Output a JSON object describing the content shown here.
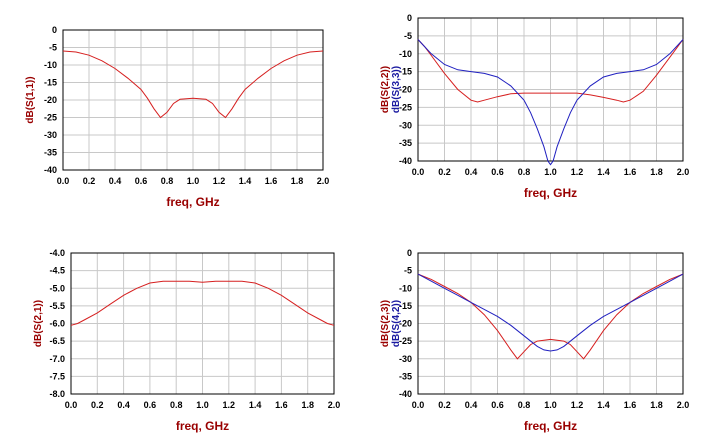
{
  "charts": [
    {
      "type": "line",
      "xlabel": "freq, GHz",
      "ylabel_parts": [
        {
          "text": "dB(S(1,1))",
          "color": "#990000"
        }
      ],
      "xlim": [
        0.0,
        2.0
      ],
      "ylim": [
        -40,
        0
      ],
      "xticks": [
        "0.0",
        "0.2",
        "0.4",
        "0.6",
        "0.8",
        "1.0",
        "1.2",
        "1.4",
        "1.6",
        "1.8",
        "2.0"
      ],
      "yticks": [
        "0",
        "-5",
        "-10",
        "-15",
        "-20",
        "-25",
        "-30",
        "-35",
        "-40"
      ],
      "grid": true,
      "series": [
        {
          "color": "#d62020",
          "x": [
            0.0,
            0.1,
            0.2,
            0.3,
            0.4,
            0.5,
            0.6,
            0.65,
            0.7,
            0.75,
            0.8,
            0.85,
            0.9,
            1.0,
            1.1,
            1.15,
            1.2,
            1.25,
            1.3,
            1.35,
            1.4,
            1.5,
            1.6,
            1.7,
            1.8,
            1.9,
            2.0
          ],
          "y": [
            -6.0,
            -6.3,
            -7.2,
            -8.8,
            -11.0,
            -13.8,
            -17.0,
            -19.5,
            -22.5,
            -25.0,
            -23.5,
            -21.0,
            -19.8,
            -19.5,
            -19.8,
            -21.0,
            -23.5,
            -25.0,
            -22.5,
            -19.5,
            -17.0,
            -13.8,
            -11.0,
            -8.8,
            -7.2,
            -6.3,
            -6.0
          ]
        }
      ]
    },
    {
      "type": "line",
      "xlabel": "freq, GHz",
      "ylabel_parts": [
        {
          "text": "dB(S(2,2))",
          "color": "#990000"
        },
        {
          "text": "dB(S(3,3))",
          "color": "#1a1aa0"
        }
      ],
      "xlim": [
        0.0,
        2.0
      ],
      "ylim": [
        -40,
        0
      ],
      "xticks": [
        "0.0",
        "0.2",
        "0.4",
        "0.6",
        "0.8",
        "1.0",
        "1.2",
        "1.4",
        "1.6",
        "1.8",
        "2.0"
      ],
      "yticks": [
        "0",
        "-5",
        "-10",
        "-15",
        "-20",
        "-25",
        "-30",
        "-35",
        "-40"
      ],
      "grid": true,
      "series": [
        {
          "color": "#d62020",
          "x": [
            0.0,
            0.05,
            0.1,
            0.2,
            0.3,
            0.4,
            0.45,
            0.5,
            0.6,
            0.7,
            0.8,
            0.9,
            1.0,
            1.1,
            1.2,
            1.3,
            1.4,
            1.5,
            1.55,
            1.6,
            1.7,
            1.8,
            1.9,
            1.95,
            2.0
          ],
          "y": [
            -6.0,
            -8.0,
            -10.5,
            -15.5,
            -20.0,
            -23.0,
            -23.5,
            -23.0,
            -22.0,
            -21.2,
            -21.0,
            -21.0,
            -21.0,
            -21.0,
            -21.0,
            -21.5,
            -22.2,
            -23.0,
            -23.5,
            -23.0,
            -20.5,
            -16.0,
            -11.0,
            -8.5,
            -6.0
          ]
        },
        {
          "color": "#2020c0",
          "x": [
            0.0,
            0.05,
            0.1,
            0.2,
            0.3,
            0.4,
            0.5,
            0.6,
            0.7,
            0.8,
            0.85,
            0.9,
            0.95,
            0.98,
            1.0,
            1.02,
            1.05,
            1.1,
            1.15,
            1.2,
            1.3,
            1.4,
            1.5,
            1.6,
            1.7,
            1.8,
            1.9,
            2.0
          ],
          "y": [
            -6.0,
            -8.0,
            -10.0,
            -13.0,
            -14.5,
            -15.0,
            -15.5,
            -16.5,
            -19.0,
            -23.0,
            -26.5,
            -31.0,
            -36.0,
            -40.0,
            -41.0,
            -40.0,
            -36.0,
            -31.0,
            -26.5,
            -23.0,
            -19.0,
            -16.5,
            -15.5,
            -15.0,
            -14.5,
            -13.0,
            -10.0,
            -6.0
          ]
        }
      ]
    },
    {
      "type": "line",
      "xlabel": "freq, GHz",
      "ylabel_parts": [
        {
          "text": "dB(S(2,1))",
          "color": "#990000"
        }
      ],
      "xlim": [
        0.0,
        2.0
      ],
      "ylim": [
        -8.0,
        -4.0
      ],
      "xticks": [
        "0.0",
        "0.2",
        "0.4",
        "0.6",
        "0.8",
        "1.0",
        "1.2",
        "1.4",
        "1.6",
        "1.8",
        "2.0"
      ],
      "yticks": [
        "-4.0",
        "-4.5",
        "-5.0",
        "-5.5",
        "-6.0",
        "-6.5",
        "-7.0",
        "-7.5",
        "-8.0"
      ],
      "grid": true,
      "series": [
        {
          "color": "#d62020",
          "x": [
            0.0,
            0.05,
            0.1,
            0.2,
            0.3,
            0.4,
            0.5,
            0.6,
            0.7,
            0.8,
            0.9,
            1.0,
            1.1,
            1.2,
            1.3,
            1.4,
            1.5,
            1.6,
            1.7,
            1.8,
            1.9,
            1.95,
            2.0
          ],
          "y": [
            -6.05,
            -6.0,
            -5.9,
            -5.7,
            -5.45,
            -5.2,
            -5.0,
            -4.85,
            -4.8,
            -4.8,
            -4.8,
            -4.83,
            -4.8,
            -4.8,
            -4.8,
            -4.85,
            -5.0,
            -5.2,
            -5.45,
            -5.7,
            -5.9,
            -6.0,
            -6.05
          ]
        }
      ]
    },
    {
      "type": "line",
      "xlabel": "freq, GHz",
      "ylabel_parts": [
        {
          "text": "dB(S(2,3))",
          "color": "#990000"
        },
        {
          "text": "dB(S(4,2))",
          "color": "#1a1aa0"
        }
      ],
      "xlim": [
        0.0,
        2.0
      ],
      "ylim": [
        -40,
        0
      ],
      "xticks": [
        "0.0",
        "0.2",
        "0.4",
        "0.6",
        "0.8",
        "1.0",
        "1.2",
        "1.4",
        "1.6",
        "1.8",
        "2.0"
      ],
      "yticks": [
        "0",
        "-5",
        "-10",
        "-15",
        "-20",
        "-25",
        "-30",
        "-35",
        "-40"
      ],
      "grid": true,
      "series": [
        {
          "color": "#d62020",
          "x": [
            0.0,
            0.1,
            0.2,
            0.3,
            0.4,
            0.5,
            0.6,
            0.7,
            0.75,
            0.8,
            0.85,
            0.9,
            1.0,
            1.1,
            1.15,
            1.2,
            1.25,
            1.3,
            1.4,
            1.5,
            1.6,
            1.7,
            1.8,
            1.9,
            2.0
          ],
          "y": [
            -6.0,
            -7.5,
            -9.5,
            -11.5,
            -14.0,
            -17.5,
            -22.0,
            -27.5,
            -30.0,
            -28.0,
            -26.0,
            -25.0,
            -24.5,
            -25.0,
            -26.0,
            -28.0,
            -30.0,
            -27.5,
            -22.0,
            -17.5,
            -14.0,
            -11.5,
            -9.5,
            -7.5,
            -6.0
          ]
        },
        {
          "color": "#2020c0",
          "x": [
            0.0,
            0.1,
            0.2,
            0.3,
            0.4,
            0.5,
            0.6,
            0.7,
            0.8,
            0.9,
            0.95,
            1.0,
            1.05,
            1.1,
            1.2,
            1.3,
            1.4,
            1.5,
            1.6,
            1.7,
            1.8,
            1.9,
            2.0
          ],
          "y": [
            -6.0,
            -8.0,
            -10.0,
            -12.0,
            -14.0,
            -16.0,
            -18.0,
            -20.5,
            -23.5,
            -26.5,
            -27.5,
            -27.8,
            -27.5,
            -26.5,
            -23.5,
            -20.5,
            -18.0,
            -16.0,
            -14.0,
            -12.0,
            -10.0,
            -8.0,
            -6.0
          ]
        }
      ]
    }
  ]
}
